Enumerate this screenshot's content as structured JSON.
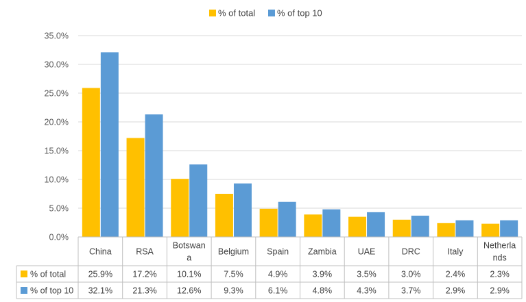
{
  "colors": {
    "total": "#FFC000",
    "top10": "#5B9BD5"
  },
  "chart_data": {
    "type": "bar",
    "categories": [
      "China",
      "RSA",
      "Botswana",
      "Belgium",
      "Spain",
      "Zambia",
      "UAE",
      "DRC",
      "Italy",
      "Netherlands"
    ],
    "category_lines": [
      [
        "China"
      ],
      [
        "RSA"
      ],
      [
        "Botswan",
        "a"
      ],
      [
        "Belgium"
      ],
      [
        "Spain"
      ],
      [
        "Zambia"
      ],
      [
        "UAE"
      ],
      [
        "DRC"
      ],
      [
        "Italy"
      ],
      [
        "Netherla",
        "nds"
      ]
    ],
    "series": [
      {
        "name": "% of total",
        "values": [
          25.9,
          17.2,
          10.1,
          7.5,
          4.9,
          3.9,
          3.5,
          3.0,
          2.4,
          2.3
        ],
        "labels": [
          "25.9%",
          "17.2%",
          "10.1%",
          "7.5%",
          "4.9%",
          "3.9%",
          "3.5%",
          "3.0%",
          "2.4%",
          "2.3%"
        ]
      },
      {
        "name": "% of top 10",
        "values": [
          32.1,
          21.3,
          12.6,
          9.3,
          6.1,
          4.8,
          4.3,
          3.7,
          2.9,
          2.9
        ],
        "labels": [
          "32.1%",
          "21.3%",
          "12.6%",
          "9.3%",
          "6.1%",
          "4.8%",
          "4.3%",
          "3.7%",
          "2.9%",
          "2.9%"
        ]
      }
    ],
    "ylim": [
      0,
      35
    ],
    "yticks": [
      "0.0%",
      "5.0%",
      "10.0%",
      "15.0%",
      "20.0%",
      "25.0%",
      "30.0%",
      "35.0%"
    ],
    "legend_position": "top",
    "grid": true,
    "data_table": true
  }
}
